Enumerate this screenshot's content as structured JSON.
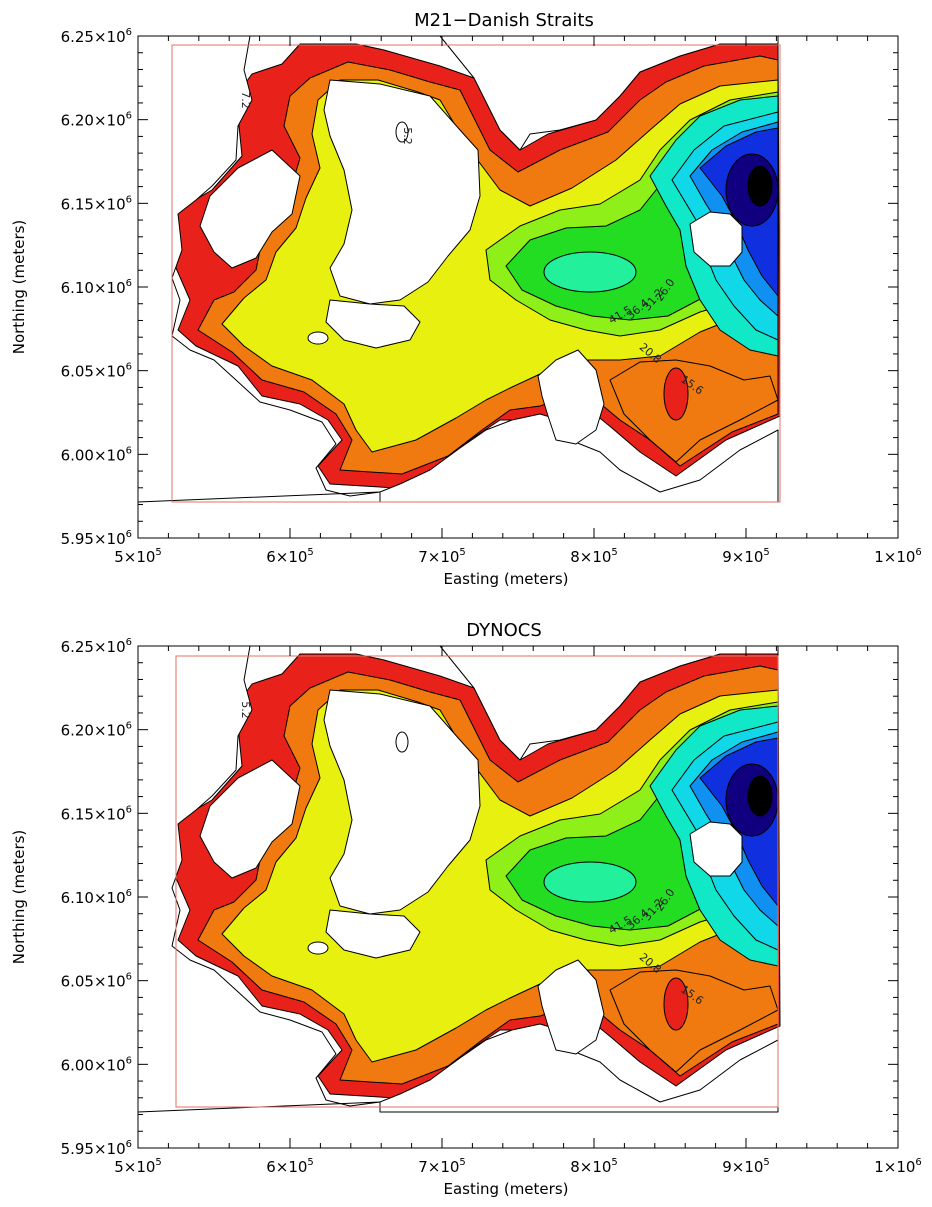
{
  "panels": [
    {
      "title": "M21−Danish Straits",
      "xlabel": "Easting (meters)",
      "ylabel": "Northing (meters)",
      "contour_labels": [
        "41.5",
        "36.4",
        "31.2",
        "26.0",
        "20.8",
        "15.6",
        "7.2",
        "5.2"
      ]
    },
    {
      "title": "DYNOCS",
      "xlabel": "Easting (meters)",
      "ylabel": "Northing (meters)",
      "contour_labels": [
        "41.5",
        "36.4",
        "31.2",
        "26.0",
        "20.8",
        "15.6",
        "5.2"
      ]
    }
  ],
  "x_ticks": [
    {
      "m": "5",
      "e": "5"
    },
    {
      "m": "6",
      "e": "5"
    },
    {
      "m": "7",
      "e": "5"
    },
    {
      "m": "8",
      "e": "5"
    },
    {
      "m": "9",
      "e": "5"
    },
    {
      "m": "1",
      "e": "6"
    }
  ],
  "y_ticks": [
    {
      "m": "6.25",
      "e": "6"
    },
    {
      "m": "6.20",
      "e": "6"
    },
    {
      "m": "6.15",
      "e": "6"
    },
    {
      "m": "6.10",
      "e": "6"
    },
    {
      "m": "6.05",
      "e": "6"
    },
    {
      "m": "6.00",
      "e": "6"
    },
    {
      "m": "5.95",
      "e": "6"
    }
  ],
  "times_sign": "×10",
  "colors": {
    "land_red": "#e8221a",
    "orange": "#f07a10",
    "yellow": "#e8f010",
    "green": "#22dd22",
    "cyan": "#10d8e8",
    "blue": "#1030e0",
    "navy": "#100080",
    "black": "#000000",
    "domain_box": "#e07060"
  }
}
